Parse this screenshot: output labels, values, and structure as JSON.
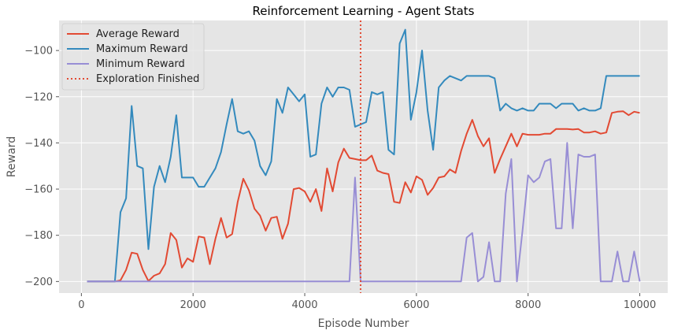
{
  "chart_data": {
    "type": "line",
    "title": "Reinforcement Learning - Agent Stats",
    "xlabel": "Episode Number",
    "ylabel": "Reward",
    "xlim": [
      -400,
      10500
    ],
    "ylim": [
      -205,
      -87
    ],
    "xticks": [
      0,
      2000,
      4000,
      6000,
      8000,
      10000
    ],
    "yticks": [
      -200,
      -180,
      -160,
      -140,
      -120,
      -100
    ],
    "grid": true,
    "legend_position": "top-left",
    "x": [
      100,
      200,
      300,
      400,
      500,
      600,
      700,
      800,
      900,
      1000,
      1100,
      1200,
      1300,
      1400,
      1500,
      1600,
      1700,
      1800,
      1900,
      2000,
      2100,
      2200,
      2300,
      2400,
      2500,
      2600,
      2700,
      2800,
      2900,
      3000,
      3100,
      3200,
      3300,
      3400,
      3500,
      3600,
      3700,
      3800,
      3900,
      4000,
      4100,
      4200,
      4300,
      4400,
      4500,
      4600,
      4700,
      4800,
      4900,
      5000,
      5100,
      5200,
      5300,
      5400,
      5500,
      5600,
      5700,
      5800,
      5900,
      6000,
      6100,
      6200,
      6300,
      6400,
      6500,
      6600,
      6700,
      6800,
      6900,
      7000,
      7100,
      7200,
      7300,
      7400,
      7500,
      7600,
      7700,
      7800,
      7900,
      8000,
      8100,
      8200,
      8300,
      8400,
      8500,
      8600,
      8700,
      8800,
      8900,
      9000,
      9100,
      9200,
      9300,
      9400,
      9500,
      9600,
      9700,
      9800,
      9900,
      10000
    ],
    "series": [
      {
        "name": "Average Reward",
        "color": "#E24A33",
        "style": "solid",
        "values": [
          -200,
          -200,
          -200,
          -200,
          -200,
          -200,
          -199.5,
          -195,
          -187.5,
          -188,
          -195,
          -199.8,
          -197.5,
          -196.5,
          -192.5,
          -179,
          -182,
          -194,
          -190,
          -191.5,
          -180.5,
          -181,
          -192.5,
          -181.5,
          -172.5,
          -181,
          -179.5,
          -165.5,
          -155.5,
          -160.5,
          -168.5,
          -171.5,
          -178,
          -172.5,
          -172,
          -181.5,
          -175,
          -160,
          -159.5,
          -161,
          -165.5,
          -160,
          -169.5,
          -151,
          -161,
          -148.5,
          -142.5,
          -146.5,
          -147,
          -147.5,
          -147.5,
          -145.5,
          -152,
          -153,
          -153.5,
          -165.5,
          -166,
          -157,
          -161.5,
          -154.5,
          -156,
          -162.5,
          -159.5,
          -155,
          -154.5,
          -151.5,
          -153,
          -143.5,
          -136,
          -130,
          -137,
          -141.5,
          -138,
          -153,
          -147,
          -141.5,
          -136,
          -141.5,
          -136,
          -136.5,
          -136.5,
          -136.5,
          -136,
          -136,
          -134,
          -134,
          -134,
          -134.2,
          -134,
          -135.5,
          -135.5,
          -135,
          -136,
          -135.5,
          -127,
          -126.5,
          -126.3,
          -128,
          -126.5,
          -127
        ]
      },
      {
        "name": "Maximum Reward",
        "color": "#348ABD",
        "style": "solid",
        "values": [
          -200,
          -200,
          -200,
          -200,
          -200,
          -200,
          -170,
          -164,
          -124,
          -150,
          -151,
          -186,
          -159,
          -150,
          -157,
          -146,
          -128,
          -155,
          -155,
          -155,
          -159,
          -159,
          -155,
          -151,
          -144,
          -132,
          -121,
          -135,
          -136,
          -135,
          -139,
          -150,
          -154,
          -148,
          -121,
          -127,
          -116,
          -119,
          -122,
          -119,
          -146,
          -145,
          -123,
          -116,
          -120,
          -116,
          -116,
          -117,
          -133,
          -132,
          -131,
          -118,
          -119,
          -118,
          -143,
          -145,
          -97,
          -91,
          -130,
          -118,
          -100,
          -126,
          -143,
          -116,
          -113,
          -111,
          -112,
          -113,
          -111,
          -111,
          -111,
          -111,
          -111,
          -112,
          -126,
          -123,
          -125,
          -126,
          -125,
          -126,
          -126,
          -123,
          -123,
          -123,
          -125,
          -123,
          -123,
          -123,
          -126,
          -125,
          -126,
          -126,
          -125,
          -111,
          -111,
          -111,
          -111,
          -111,
          -111,
          -111
        ]
      },
      {
        "name": "Minimum Reward",
        "color": "#988ED5",
        "style": "solid",
        "values": [
          -200,
          -200,
          -200,
          -200,
          -200,
          -200,
          -200,
          -200,
          -200,
          -200,
          -200,
          -200,
          -200,
          -200,
          -200,
          -200,
          -200,
          -200,
          -200,
          -200,
          -200,
          -200,
          -200,
          -200,
          -200,
          -200,
          -200,
          -200,
          -200,
          -200,
          -200,
          -200,
          -200,
          -200,
          -200,
          -200,
          -200,
          -200,
          -200,
          -200,
          -200,
          -200,
          -200,
          -200,
          -200,
          -200,
          -200,
          -200,
          -155,
          -200,
          -200,
          -200,
          -200,
          -200,
          -200,
          -200,
          -200,
          -200,
          -200,
          -200,
          -200,
          -200,
          -200,
          -200,
          -200,
          -200,
          -200,
          -200,
          -181,
          -179,
          -200,
          -198,
          -183,
          -200,
          -200,
          -162,
          -147,
          -200,
          -178,
          -154,
          -157,
          -155,
          -148,
          -147,
          -177,
          -177,
          -140,
          -177,
          -145,
          -146,
          -146,
          -145,
          -200,
          -200,
          -200,
          -187,
          -200,
          -200,
          -187,
          -200
        ]
      },
      {
        "name": "Exploration Finished",
        "color": "#E24A33",
        "style": "dotted",
        "vline_x": 5000
      }
    ]
  }
}
